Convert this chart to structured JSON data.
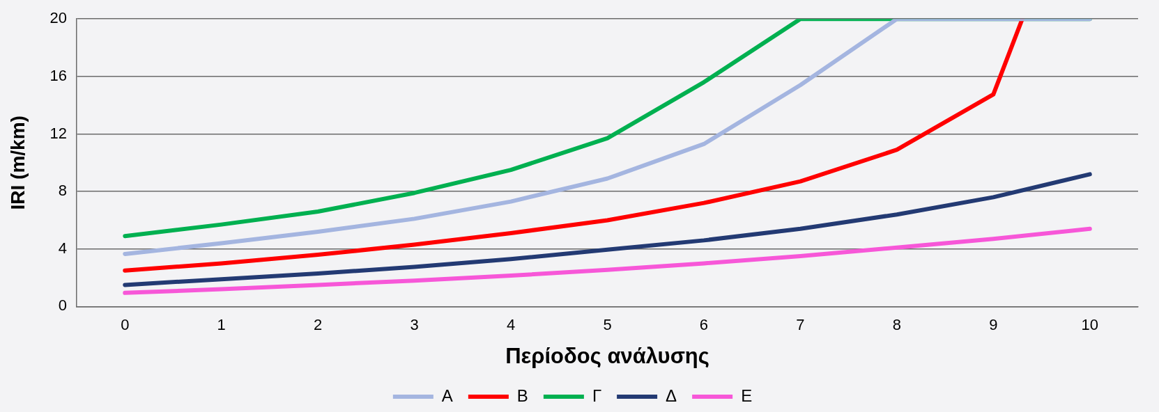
{
  "chart_data": {
    "type": "line",
    "xlabel": "Περίοδος ανάλυσης",
    "ylabel": "IRI (m/km)",
    "x": [
      0,
      1,
      2,
      3,
      4,
      5,
      6,
      7,
      8,
      9,
      10
    ],
    "xlim": [
      -0.5,
      10.5
    ],
    "xticks": [
      0,
      1,
      2,
      3,
      4,
      5,
      6,
      7,
      8,
      9,
      10
    ],
    "ylim": [
      0,
      20
    ],
    "yticks": [
      0,
      4,
      8,
      12,
      16,
      20
    ],
    "grid": "y",
    "legend": "bottom",
    "marker": "none",
    "line_style": "solid",
    "series": [
      {
        "name": "A",
        "color": "#a4b5e0",
        "values": [
          3.65,
          4.4,
          5.2,
          6.1,
          7.3,
          8.9,
          11.3,
          15.4,
          20,
          20,
          20
        ]
      },
      {
        "name": "B",
        "color": "#ff0000",
        "x": [
          0,
          1,
          2,
          3,
          4,
          5,
          6,
          7,
          8,
          9,
          9.3
        ],
        "values": [
          2.5,
          3.0,
          3.6,
          4.3,
          5.1,
          6.0,
          7.2,
          8.7,
          10.9,
          14.75,
          20
        ]
      },
      {
        "name": "Γ",
        "color": "#00b050",
        "values": [
          4.9,
          5.7,
          6.6,
          7.9,
          9.5,
          11.7,
          15.6,
          20,
          20,
          20,
          20
        ]
      },
      {
        "name": "Δ",
        "color": "#233a73",
        "values": [
          1.5,
          1.9,
          2.3,
          2.75,
          3.3,
          3.95,
          4.6,
          5.4,
          6.4,
          7.6,
          9.2
        ]
      },
      {
        "name": "Ε",
        "color": "#f757d8",
        "values": [
          0.95,
          1.2,
          1.5,
          1.8,
          2.15,
          2.55,
          3.0,
          3.5,
          4.1,
          4.7,
          5.4
        ]
      }
    ]
  }
}
